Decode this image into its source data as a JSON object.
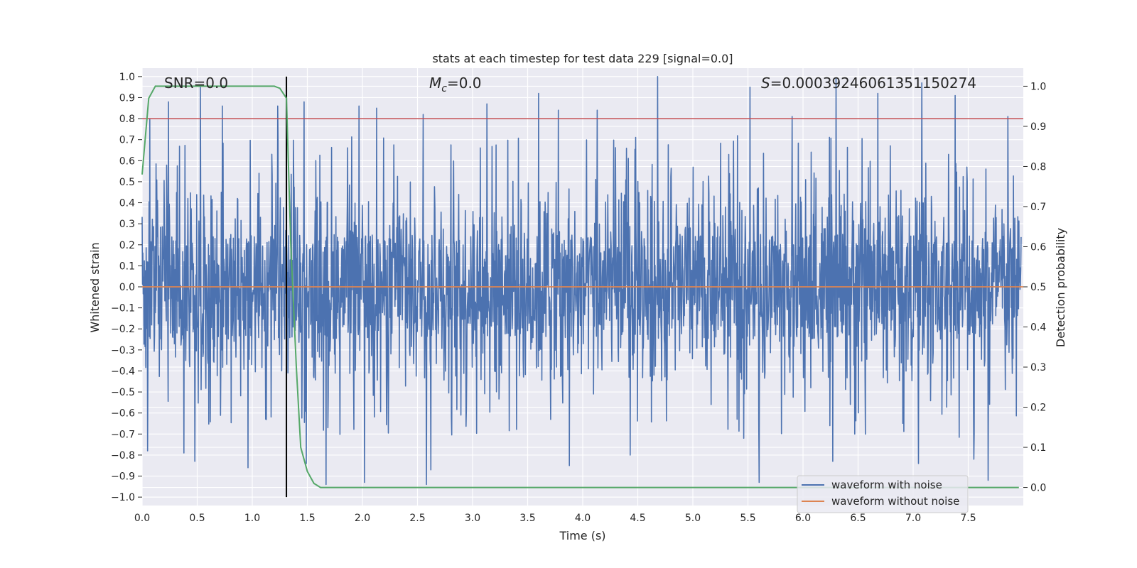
{
  "chart_data": {
    "type": "line",
    "title": "stats at each timestep for test data 229 [signal=0.0]",
    "xlabel": "Time (s)",
    "ylabel": "Whitened strain",
    "y2label": "Detection probability",
    "xlim": [
      0.0,
      8.0
    ],
    "ylim": [
      -1.04,
      1.04
    ],
    "y2lim": [
      -0.045,
      1.045
    ],
    "x_ticks": [
      "0.0",
      "0.5",
      "1.0",
      "1.5",
      "2.0",
      "2.5",
      "3.0",
      "3.5",
      "4.0",
      "4.5",
      "5.0",
      "5.5",
      "6.0",
      "6.5",
      "7.0",
      "7.5"
    ],
    "y_ticks": [
      "1.0",
      "0.9",
      "0.8",
      "0.7",
      "0.6",
      "0.5",
      "0.4",
      "0.3",
      "0.2",
      "0.1",
      "0.0",
      "-0.1",
      "-0.2",
      "-0.3",
      "-0.4",
      "-0.5",
      "-0.6",
      "-0.7",
      "-0.8",
      "-0.9",
      "-1.0"
    ],
    "y2_ticks": [
      "1.0",
      "0.9",
      "0.8",
      "0.7",
      "0.6",
      "0.5",
      "0.4",
      "0.3",
      "0.2",
      "0.1",
      "0.0"
    ],
    "annotations": {
      "snr": "SNR=0.0",
      "mc_symbol": "M",
      "mc_sub": "c",
      "mc_value": "=0.0",
      "s_symbol": "S",
      "s_value": "=0.00039246061351150274"
    },
    "series": [
      {
        "name": "waveform with noise",
        "axis": "left",
        "color": "#4c72b0",
        "description_values": "dense noise between approx -0.95 and 1.0",
        "noise_envelope": {
          "upper_typical": 0.42,
          "lower_typical": -0.38,
          "max": 1.0,
          "min": -0.95,
          "peaks": [
            [
              0.07,
              0.8
            ],
            [
              0.24,
              0.88
            ],
            [
              0.53,
              0.95
            ],
            [
              0.73,
              0.86
            ],
            [
              1.23,
              0.86
            ],
            [
              1.47,
              0.88
            ],
            [
              1.97,
              0.86
            ],
            [
              2.13,
              0.85
            ],
            [
              2.55,
              0.82
            ],
            [
              3.13,
              0.87
            ],
            [
              3.6,
              0.92
            ],
            [
              3.78,
              0.84
            ],
            [
              4.13,
              0.84
            ],
            [
              4.68,
              1.0
            ],
            [
              5.52,
              0.95
            ],
            [
              5.9,
              0.81
            ],
            [
              6.3,
              0.99
            ],
            [
              6.68,
              0.92
            ],
            [
              7.08,
              0.97
            ],
            [
              7.38,
              0.91
            ],
            [
              7.86,
              0.81
            ]
          ],
          "troughs": [
            [
              0.05,
              -0.78
            ],
            [
              0.38,
              -0.79
            ],
            [
              0.48,
              -0.83
            ],
            [
              0.96,
              -0.86
            ],
            [
              1.49,
              -0.84
            ],
            [
              1.67,
              -0.94
            ],
            [
              2.02,
              -0.93
            ],
            [
              2.58,
              -0.94
            ],
            [
              2.62,
              -0.87
            ],
            [
              3.88,
              -0.85
            ],
            [
              4.43,
              -0.8
            ],
            [
              5.6,
              -0.93
            ],
            [
              6.27,
              -0.83
            ],
            [
              7.05,
              -0.84
            ],
            [
              7.55,
              -0.82
            ],
            [
              7.68,
              -0.92
            ]
          ]
        }
      },
      {
        "name": "waveform without noise",
        "axis": "left",
        "color": "#dd8452",
        "x": [
          0.0,
          8.0
        ],
        "y": [
          0.0,
          0.0
        ]
      },
      {
        "name": "",
        "axis": "right",
        "color": "#55a868",
        "x": [
          0.0,
          0.06,
          0.12,
          0.2,
          0.5,
          1.0,
          1.2,
          1.25,
          1.31,
          1.35,
          1.4,
          1.44,
          1.5,
          1.56,
          1.62,
          2.0,
          3.0,
          4.0,
          5.0,
          6.0,
          7.0,
          7.96
        ],
        "y": [
          0.78,
          0.97,
          1.0,
          1.0,
          1.0,
          1.0,
          1.0,
          0.995,
          0.97,
          0.6,
          0.3,
          0.1,
          0.04,
          0.01,
          0.0,
          0.0,
          0.0,
          0.0,
          0.0,
          0.0,
          0.0,
          0.0
        ]
      }
    ],
    "hlines": [
      {
        "axis": "left",
        "y": 0.8,
        "color": "#c44e52"
      }
    ],
    "vlines": [
      {
        "axis": "left",
        "x": 1.31,
        "ymin": -1.0,
        "ymax": 1.0,
        "color": "#000000"
      }
    ],
    "legend": {
      "placement": "lower-right",
      "entries": [
        "waveform with noise",
        "waveform without noise"
      ]
    },
    "grid": true,
    "plot_background": "#eaeaf2"
  }
}
